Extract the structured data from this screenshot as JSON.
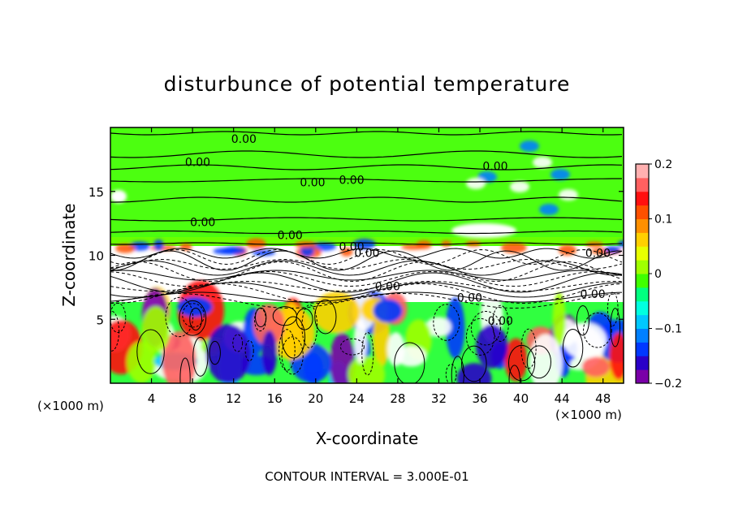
{
  "chart_data": {
    "type": "heatmap",
    "title": "disturbunce of potential temperature",
    "xlabel": "X-coordinate",
    "ylabel": "Z-coordinate",
    "x_unit": "(×1000 m)",
    "y_unit": "(×1000 m)",
    "x_ticks": [
      4,
      8,
      12,
      16,
      20,
      24,
      28,
      32,
      36,
      40,
      44,
      48
    ],
    "y_ticks": [
      5,
      10,
      15
    ],
    "xlim": [
      0,
      50
    ],
    "ylim": [
      0,
      20
    ],
    "footer": "CONTOUR INTERVAL = 3.000E-01",
    "colorbar": {
      "range": [
        -0.2,
        0.2
      ],
      "tick_labels": [
        "0.2",
        "0.1",
        "0",
        "−0.1",
        "−0.2"
      ],
      "colors": [
        "#7a00a8",
        "#2a00c8",
        "#0038ff",
        "#0080ff",
        "#00c8ff",
        "#00ffe0",
        "#00ff80",
        "#40ff00",
        "#a0ff00",
        "#e8ff00",
        "#ffd000",
        "#ff9000",
        "#ff5000",
        "#ff1010",
        "#ff6060",
        "#ffb0b0"
      ]
    },
    "contour_labels": [
      {
        "x": 13.0,
        "y": 19.1,
        "text": "0.00"
      },
      {
        "x": 8.5,
        "y": 17.3,
        "text": "0.00"
      },
      {
        "x": 37.5,
        "y": 17.0,
        "text": "0.00"
      },
      {
        "x": 19.7,
        "y": 15.7,
        "text": "0.00"
      },
      {
        "x": 23.5,
        "y": 15.9,
        "text": "0.00"
      },
      {
        "x": 9.0,
        "y": 12.6,
        "text": "0.00"
      },
      {
        "x": 17.5,
        "y": 11.6,
        "text": "0.00"
      },
      {
        "x": 23.5,
        "y": 10.7,
        "text": "0.00"
      },
      {
        "x": 25.0,
        "y": 10.2,
        "text": "0.00"
      },
      {
        "x": 27.0,
        "y": 7.6,
        "text": "0.00"
      },
      {
        "x": 35.0,
        "y": 6.7,
        "text": "0.00"
      },
      {
        "x": 38.0,
        "y": 4.9,
        "text": "0.00"
      },
      {
        "x": 47.5,
        "y": 10.2,
        "text": "0.00"
      },
      {
        "x": 47.0,
        "y": 7.0,
        "text": "0.00"
      }
    ]
  }
}
